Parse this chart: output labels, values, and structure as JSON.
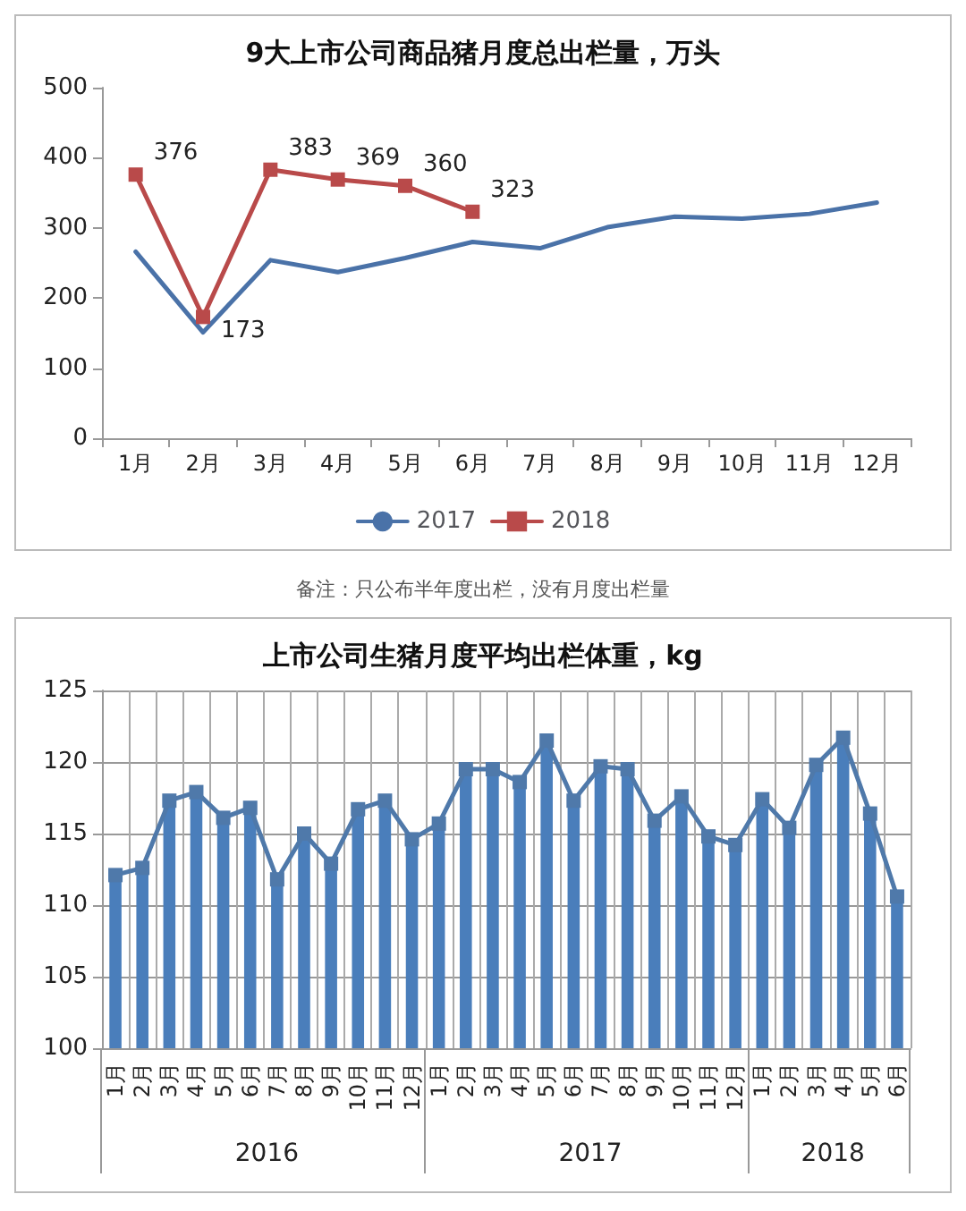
{
  "chart_data": [
    {
      "type": "line",
      "title": "9大上市公司商品猪月度总出栏量，万头",
      "categories": [
        "1月",
        "2月",
        "3月",
        "4月",
        "5月",
        "6月",
        "7月",
        "8月",
        "9月",
        "10月",
        "11月",
        "12月"
      ],
      "series": [
        {
          "name": "2017",
          "color": "#4a72a8",
          "marker": "none",
          "values": [
            266,
            151,
            254,
            237,
            257,
            280,
            271,
            301,
            316,
            313,
            320,
            336
          ]
        },
        {
          "name": "2018",
          "color": "#b94a4a",
          "marker": "square",
          "values": [
            376,
            173,
            383,
            369,
            360,
            323,
            null,
            null,
            null,
            null,
            null,
            null
          ],
          "value_labels": [
            "376",
            "173",
            "383",
            "369",
            "360",
            "323",
            null,
            null,
            null,
            null,
            null,
            null
          ]
        }
      ],
      "ylim": [
        0,
        500
      ],
      "yticks": [
        0,
        100,
        200,
        300,
        400,
        500
      ],
      "grid": false,
      "legend": "bottom",
      "annotations": [
        "备注：只公布半年度出栏，没有月度出栏量"
      ]
    },
    {
      "type": "bar",
      "title": "上市公司生猪月度平均出栏体重，kg",
      "categories": [
        "1月",
        "2月",
        "3月",
        "4月",
        "5月",
        "6月",
        "7月",
        "8月",
        "9月",
        "10月",
        "11月",
        "12月",
        "1月",
        "2月",
        "3月",
        "4月",
        "5月",
        "6月",
        "7月",
        "8月",
        "9月",
        "10月",
        "11月",
        "12月",
        "1月",
        "2月",
        "3月",
        "4月",
        "5月",
        "6月"
      ],
      "series": [
        {
          "type": "bar",
          "color": "#4a7ebb",
          "values": [
            112.1,
            112.6,
            117.3,
            117.9,
            116.1,
            116.8,
            111.8,
            115.0,
            112.9,
            116.7,
            117.3,
            114.6,
            115.7,
            119.5,
            119.5,
            118.6,
            121.5,
            117.3,
            119.7,
            119.5,
            115.9,
            117.6,
            114.8,
            114.2,
            117.4,
            115.4,
            119.8,
            121.7,
            116.4,
            110.6
          ]
        },
        {
          "type": "line",
          "color": "#4f79aa",
          "marker": "square",
          "values": [
            112.1,
            112.6,
            117.3,
            117.9,
            116.1,
            116.8,
            111.8,
            115.0,
            112.9,
            116.7,
            117.3,
            114.6,
            115.7,
            119.5,
            119.5,
            118.6,
            121.5,
            117.3,
            119.7,
            119.5,
            115.9,
            117.6,
            114.8,
            114.2,
            117.4,
            115.4,
            119.8,
            121.7,
            116.4,
            110.6
          ]
        }
      ],
      "ylim": [
        100,
        125
      ],
      "yticks": [
        100,
        105,
        110,
        115,
        120,
        125
      ],
      "grid": "y",
      "legend": false,
      "annotations": [
        "2016",
        "2017",
        "2018"
      ]
    }
  ]
}
